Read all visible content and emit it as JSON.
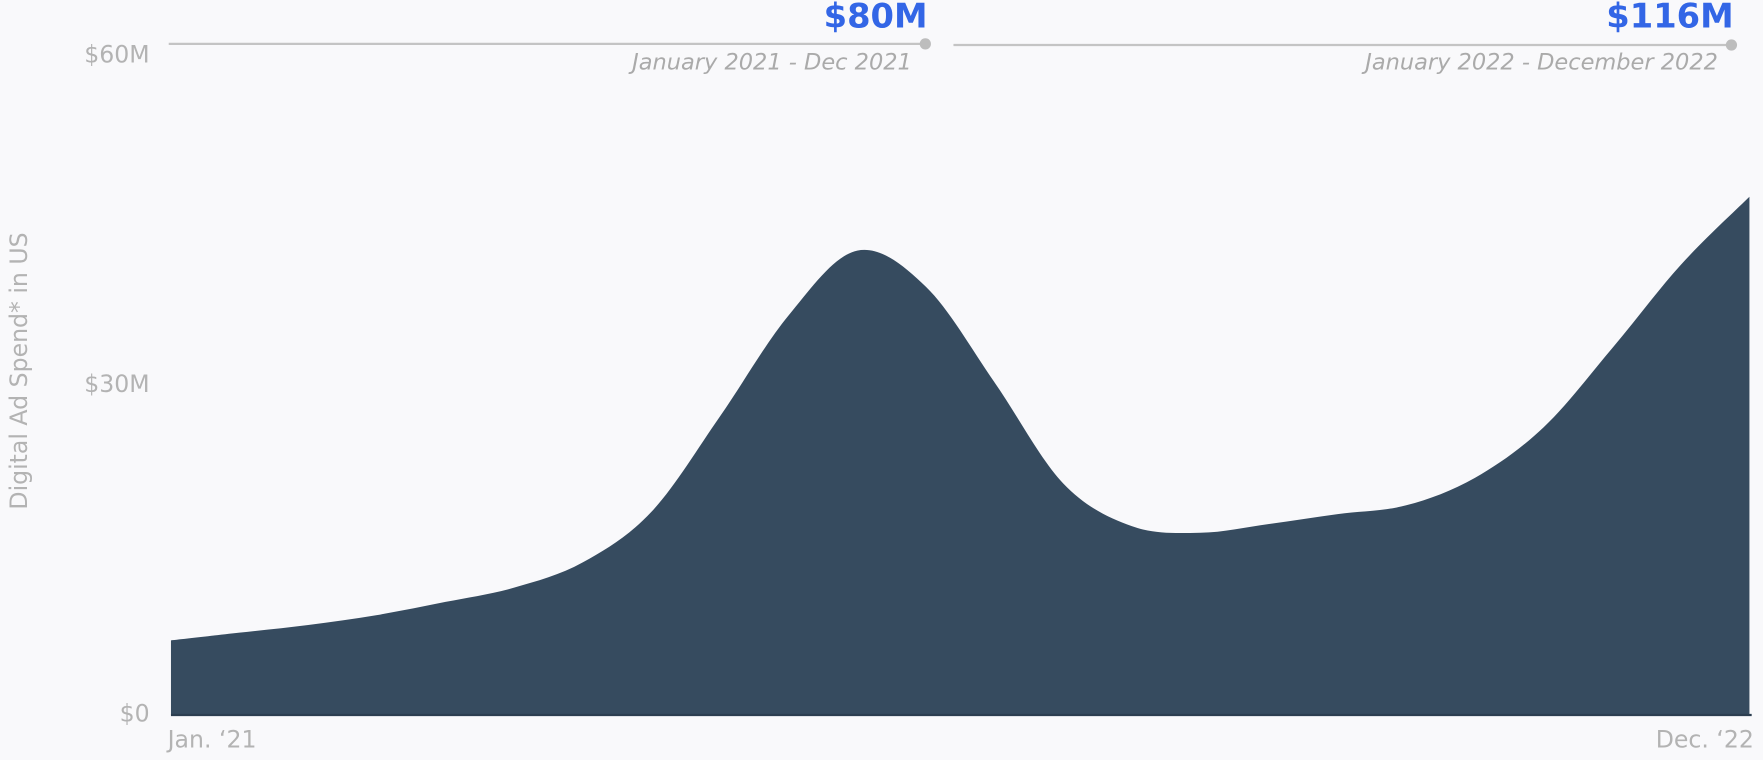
{
  "chart_data": {
    "type": "area",
    "ylabel": "Digital Ad Spend* in US",
    "categories": [
      "Jan. ‘21",
      null,
      null,
      null,
      null,
      null,
      null,
      null,
      null,
      null,
      null,
      null,
      null,
      null,
      null,
      null,
      null,
      null,
      null,
      null,
      null,
      null,
      null,
      "Dec. ‘22"
    ],
    "values": [
      6.8,
      7.5,
      8.2,
      9.1,
      10.3,
      11.6,
      13.9,
      18.5,
      27.2,
      36.4,
      42.3,
      39,
      30.3,
      21.1,
      17.2,
      16.6,
      17.4,
      18.3,
      19.1,
      21.6,
      26.2,
      33.4,
      41,
      47.2
    ],
    "color": "#364b5f",
    "ylim": [
      0,
      60
    ],
    "yticks": [
      {
        "value": 0,
        "label": "$0"
      },
      {
        "value": 30,
        "label": "$30M"
      },
      {
        "value": 60,
        "label": "$60M"
      }
    ],
    "grid": false,
    "annotations": [
      {
        "text": "$80M",
        "period": "January 2021 - Dec 2021"
      },
      {
        "text": "$116M",
        "period": "January 2022 - December 2022"
      }
    ]
  }
}
